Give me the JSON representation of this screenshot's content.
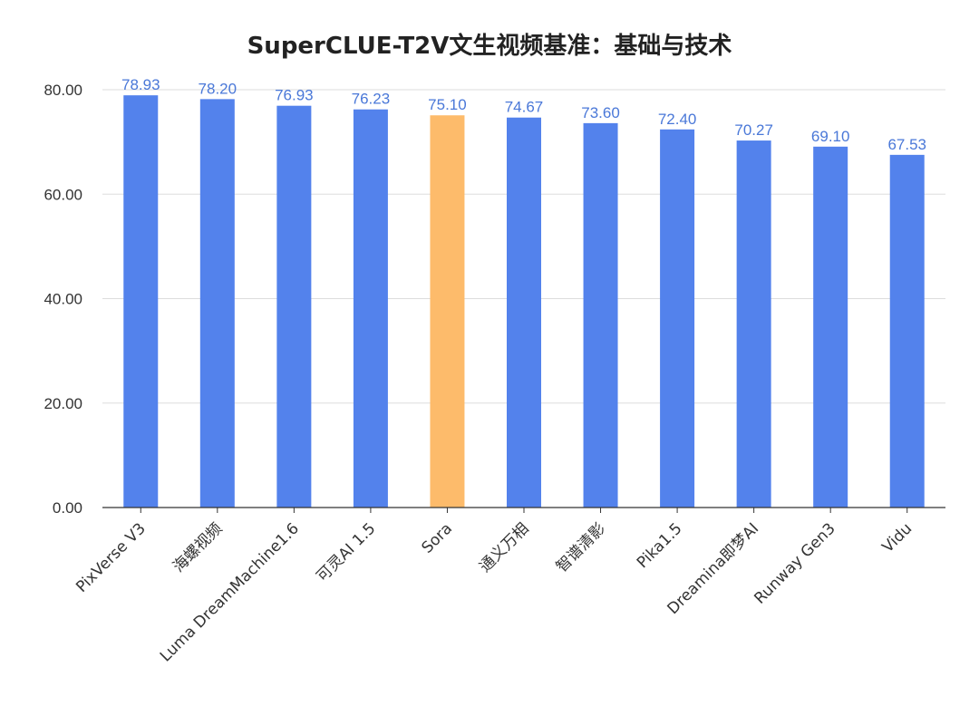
{
  "chart_data": {
    "type": "bar",
    "title": "SuperCLUE-T2V文生视频基准：基础与技术",
    "categories": [
      "PixVerse V3",
      "海螺视频",
      "Luma DreamMachine1.6",
      "可灵AI 1.5",
      "Sora",
      "通义万相",
      "智谱清影",
      "Pika1.5",
      "Dreamina即梦AI",
      "Runway Gen3",
      "Vidu"
    ],
    "values": [
      78.93,
      78.2,
      76.93,
      76.23,
      75.1,
      74.67,
      73.6,
      72.4,
      70.27,
      69.1,
      67.53
    ],
    "value_labels": [
      "78.93",
      "78.20",
      "76.93",
      "76.23",
      "75.10",
      "74.67",
      "73.60",
      "72.40",
      "70.27",
      "69.10",
      "67.53"
    ],
    "highlight_index": 4,
    "yticks": [
      "0.00",
      "20.00",
      "40.00",
      "60.00",
      "80.00"
    ],
    "ytick_values": [
      0,
      20,
      40,
      60,
      80
    ],
    "ylim": [
      0,
      80
    ],
    "xlabel": "",
    "ylabel": "",
    "grid": true,
    "legend": "none",
    "colors": {
      "bar": "#5382ec",
      "highlight": "#fdbb6b",
      "label": "#4a78d8",
      "grid": "#dddddd",
      "axis": "#333333"
    }
  }
}
